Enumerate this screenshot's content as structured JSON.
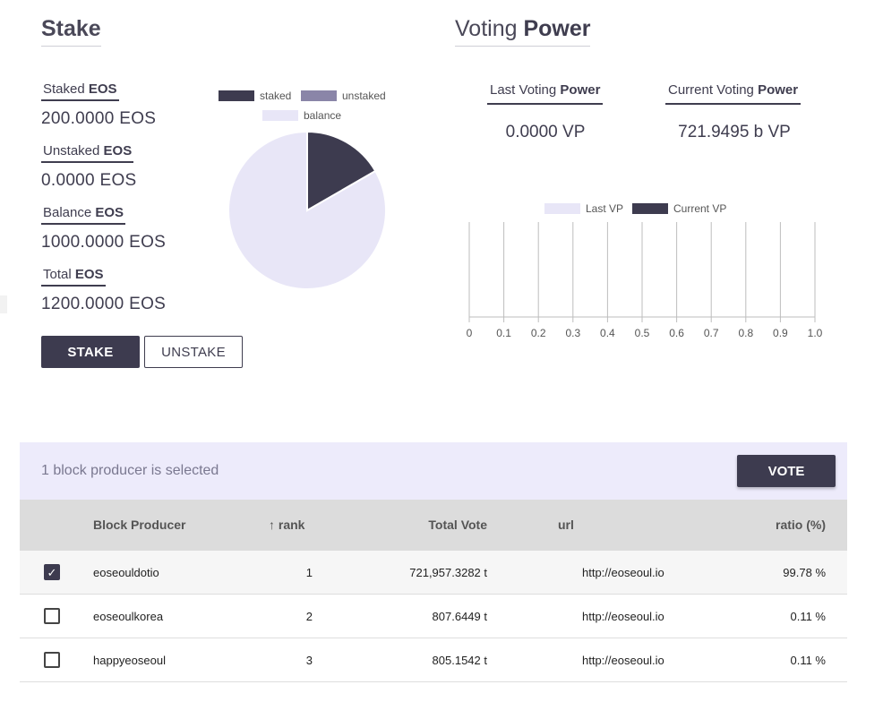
{
  "stake": {
    "title": "Stake",
    "staked_label": [
      "Staked ",
      "EOS"
    ],
    "staked_value": "200.0000 EOS",
    "unstaked_label": [
      "Unstaked ",
      "EOS"
    ],
    "unstaked_value": "0.0000 EOS",
    "balance_label": [
      "Balance ",
      "EOS"
    ],
    "balance_value": "1000.0000 EOS",
    "total_label": [
      "Total ",
      "EOS"
    ],
    "total_value": "1200.0000 EOS",
    "stake_button": "STAKE",
    "unstake_button": "UNSTAKE",
    "legend": {
      "staked": "staked",
      "unstaked": "unstaked",
      "balance": "balance"
    },
    "colors": {
      "staked": "#3d3b4f",
      "unstaked": "#8a85a8",
      "balance": "#e8e6f7"
    }
  },
  "voting": {
    "title_prefix": "Voting ",
    "title_bold": "Power",
    "last_label": [
      "Last Voting ",
      "Power"
    ],
    "last_value": "0.0000 VP",
    "current_label": [
      "Current Voting ",
      "Power"
    ],
    "current_value": "721.9495 b VP",
    "legend": {
      "last": "Last VP",
      "current": "Current VP"
    },
    "colors": {
      "last": "#e8e6f7",
      "current": "#3d3b4f"
    }
  },
  "chart_data": [
    {
      "type": "pie",
      "labels": [
        "staked",
        "unstaked",
        "balance"
      ],
      "values": [
        200,
        0,
        1000
      ]
    },
    {
      "type": "bar",
      "orientation": "horizontal",
      "series": [
        {
          "name": "Last VP",
          "values": []
        },
        {
          "name": "Current VP",
          "values": []
        }
      ],
      "xlim": [
        0,
        1.0
      ],
      "xticks": [
        "0",
        "0.1",
        "0.2",
        "0.3",
        "0.4",
        "0.5",
        "0.6",
        "0.7",
        "0.8",
        "0.9",
        "1.0"
      ],
      "grid": true,
      "legend": "top"
    }
  ],
  "selection": {
    "text": "1 block producer is selected",
    "vote_button": "VOTE"
  },
  "table": {
    "headers": {
      "producer": "Block Producer",
      "rank_arrow": "↑",
      "rank": "rank",
      "total": "Total Vote",
      "url": "url",
      "ratio": "ratio (%)"
    },
    "rows": [
      {
        "checked": true,
        "producer": "eoseouldotio",
        "rank": "1",
        "total": "721,957.3282 t",
        "url": "http://eoseoul.io",
        "ratio": "99.78 %"
      },
      {
        "checked": false,
        "producer": "eoseoulkorea",
        "rank": "2",
        "total": "807.6449 t",
        "url": "http://eoseoul.io",
        "ratio": "0.11 %"
      },
      {
        "checked": false,
        "producer": "happyeoseoul",
        "rank": "3",
        "total": "805.1542 t",
        "url": "http://eoseoul.io",
        "ratio": "0.11 %"
      }
    ],
    "check_glyph": "✓"
  }
}
